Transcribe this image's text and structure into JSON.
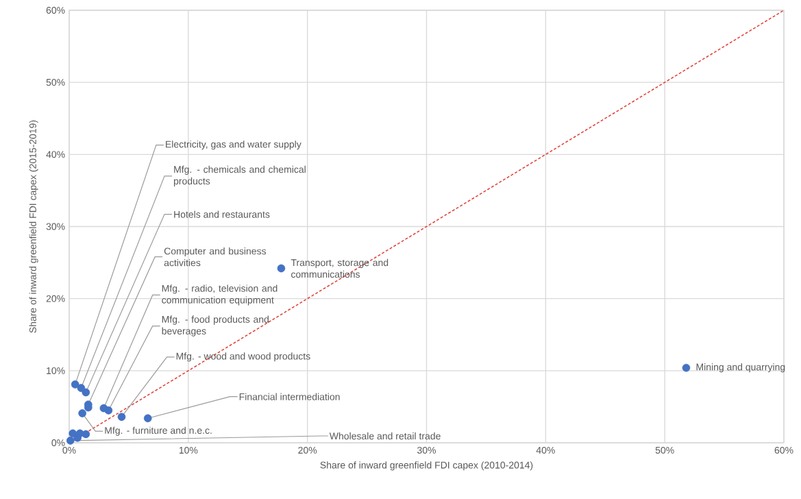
{
  "chart_data": {
    "type": "scatter",
    "xlabel": "Share of inward greenfield FDI capex (2010-2014)",
    "ylabel": "Share of inward greenfield FDI capex (2015-2019)",
    "xlim": [
      0,
      60
    ],
    "ylim": [
      0,
      60
    ],
    "xticks": [
      {
        "value": 0,
        "label": "0%"
      },
      {
        "value": 10,
        "label": "10%"
      },
      {
        "value": 20,
        "label": "20%"
      },
      {
        "value": 30,
        "label": "30%"
      },
      {
        "value": 40,
        "label": "40%"
      },
      {
        "value": 50,
        "label": "50%"
      },
      {
        "value": 60,
        "label": "60%"
      }
    ],
    "yticks": [
      {
        "value": 0,
        "label": "0%"
      },
      {
        "value": 10,
        "label": "10%"
      },
      {
        "value": 20,
        "label": "20%"
      },
      {
        "value": 30,
        "label": "30%"
      },
      {
        "value": 40,
        "label": "40%"
      },
      {
        "value": 50,
        "label": "50%"
      },
      {
        "value": 60,
        "label": "60%"
      }
    ],
    "grid": true,
    "series": [
      {
        "color": "#4472c4",
        "marker": "circle",
        "x": [
          0.5,
          1.0,
          1.4,
          1.6,
          1.6,
          2.9,
          3.3,
          4.4,
          6.6,
          1.1,
          0.1,
          17.8,
          51.8,
          0.3,
          0.9,
          1.4,
          0.7
        ],
        "values": [
          8.1,
          7.6,
          7.0,
          5.3,
          4.9,
          4.8,
          4.5,
          3.6,
          3.4,
          4.1,
          0.3,
          24.2,
          10.4,
          1.3,
          1.3,
          1.2,
          0.7
        ]
      },
      {
        "type": "line",
        "color": "#e03c31",
        "line_style": "dashed",
        "marker": "none",
        "x": [
          0,
          60
        ],
        "values": [
          0,
          60
        ]
      }
    ],
    "annotations": [
      {
        "text": "Electricity, gas and water supply",
        "x": 0.5,
        "y": 8.1
      },
      {
        "text": "Mfg. -  chemicals and chemical products",
        "x": 1.0,
        "y": 7.6
      },
      {
        "text": "Hotels and restaurants",
        "x": 1.4,
        "y": 7.0
      },
      {
        "text": "Computer and business activities",
        "x": 1.6,
        "y": 5.3
      },
      {
        "text": "Mfg. -  radio, television and communication equipment",
        "x": 2.9,
        "y": 4.8
      },
      {
        "text": "Mfg. -  food products and beverages",
        "x": 3.3,
        "y": 4.5
      },
      {
        "text": "Mfg. - wood and wood products",
        "x": 4.4,
        "y": 3.6
      },
      {
        "text": "Financial intermediation",
        "x": 6.6,
        "y": 3.4
      },
      {
        "text": "Mfg. - furniture and n.e.c.",
        "x": 1.1,
        "y": 4.1
      },
      {
        "text": "Wholesale and retail trade",
        "x": 0.1,
        "y": 0.3
      },
      {
        "text": "Transport, storage and communications",
        "x": 17.8,
        "y": 24.2
      },
      {
        "text": "Mining and quarrying",
        "x": 51.8,
        "y": 10.4
      }
    ]
  }
}
